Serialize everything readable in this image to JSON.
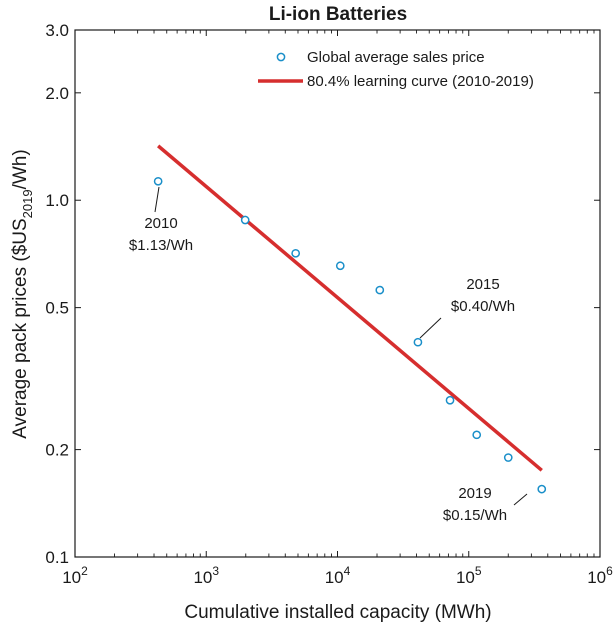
{
  "chart_data": {
    "type": "scatter",
    "title": "Li-ion Batteries",
    "xlabel": "Cumulative installed capacity (MWh)",
    "ylabel": {
      "main": "Average pack prices ($US",
      "sub": "2019",
      "unit": "/Wh)"
    },
    "xscale": "log",
    "yscale": "log",
    "xlim": [
      100,
      1000000
    ],
    "ylim": [
      0.1,
      3.0
    ],
    "x_ticks": [
      {
        "value": 100,
        "base": "10",
        "exp": "2"
      },
      {
        "value": 1000,
        "base": "10",
        "exp": "3"
      },
      {
        "value": 10000,
        "base": "10",
        "exp": "4"
      },
      {
        "value": 100000,
        "base": "10",
        "exp": "5"
      },
      {
        "value": 1000000,
        "base": "10",
        "exp": "6"
      }
    ],
    "y_ticks": [
      {
        "value": 0.1,
        "label": "0.1"
      },
      {
        "value": 0.2,
        "label": "0.2"
      },
      {
        "value": 0.5,
        "label": "0.5"
      },
      {
        "value": 1.0,
        "label": "1.0"
      },
      {
        "value": 2.0,
        "label": "2.0"
      },
      {
        "value": 3.0,
        "label": "3.0"
      }
    ],
    "series": [
      {
        "name": "Global average sales price",
        "kind": "scatter",
        "color": "#1a8fc9",
        "x": [
          430,
          1980,
          4800,
          10500,
          21000,
          41000,
          72000,
          115000,
          200000,
          360000
        ],
        "y": [
          1.13,
          0.88,
          0.71,
          0.655,
          0.56,
          0.4,
          0.275,
          0.22,
          0.19,
          0.155
        ]
      },
      {
        "name": "80.4% learning curve (2010-2019)",
        "kind": "line",
        "color": "#d62e2e",
        "x": [
          430,
          360000
        ],
        "y": [
          1.42,
          0.175
        ]
      }
    ],
    "annotations": [
      {
        "lines": [
          "2010",
          "$1.13/Wh"
        ],
        "point_x": 430,
        "point_y": 1.13
      },
      {
        "lines": [
          "2015",
          "$0.40/Wh"
        ],
        "point_x": 41000,
        "point_y": 0.4
      },
      {
        "lines": [
          "2019",
          "$0.15/Wh"
        ],
        "point_x": 360000,
        "point_y": 0.155
      }
    ],
    "legend_position": "top-right",
    "grid": false
  }
}
